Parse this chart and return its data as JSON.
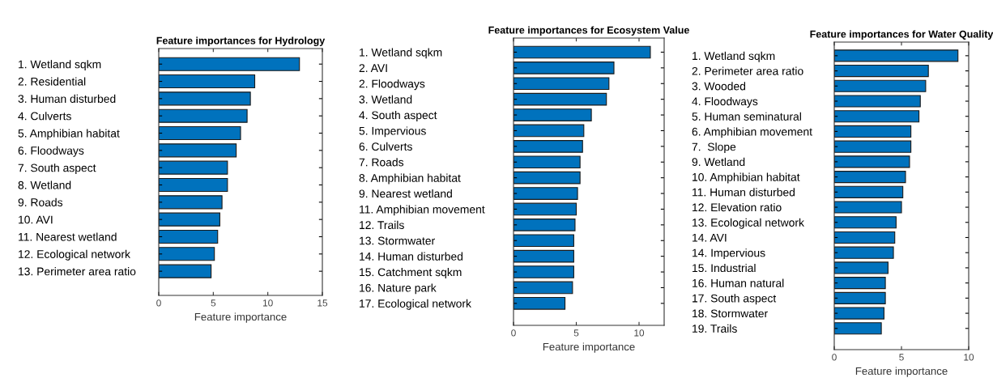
{
  "chart_data": [
    {
      "type": "bar",
      "orientation": "horizontal",
      "title": "Feature importances for Hydrology",
      "xlabel": "Feature importance",
      "categories": [
        "1. Wetland sqkm",
        "2. Residential",
        "3. Human disturbed",
        "4. Culverts",
        "5. Amphibian habitat",
        "6. Floodways",
        "7. South aspect",
        "8. Wetland",
        "9. Roads",
        "10. AVI",
        "11. Nearest wetland",
        "12. Ecological network",
        "13. Perimeter area ratio"
      ],
      "color": "#0072bd",
      "values": [
        12.9,
        8.8,
        8.4,
        8.1,
        7.5,
        7.1,
        6.3,
        6.3,
        5.8,
        5.6,
        5.4,
        5.1,
        4.8
      ],
      "xlim": [
        0,
        15
      ],
      "xticks": [
        0,
        5,
        10,
        15
      ],
      "grid": false
    },
    {
      "type": "bar",
      "orientation": "horizontal",
      "title": "Feature importances for Ecosystem Value",
      "xlabel": "Feature importance",
      "categories": [
        "1. Wetland sqkm",
        "2. AVI",
        "2. Floodways",
        "3. Wetland",
        "4. South aspect",
        "5. Impervious",
        "6. Culverts",
        "7. Roads",
        "8. Amphibian habitat",
        "9. Nearest wetland",
        "11. Amphibian movement",
        "12. Trails",
        "13. Stormwater",
        "14. Human disturbed",
        "15. Catchment sqkm",
        "16. Nature park",
        "17. Ecological network"
      ],
      "color": "#0072bd",
      "values": [
        10.9,
        8.0,
        7.6,
        7.4,
        6.2,
        5.6,
        5.5,
        5.3,
        5.3,
        5.1,
        5.0,
        4.9,
        4.8,
        4.8,
        4.8,
        4.7,
        4.1
      ],
      "xlim": [
        0,
        12
      ],
      "xticks": [
        0,
        5,
        10
      ],
      "grid": false
    },
    {
      "type": "bar",
      "orientation": "horizontal",
      "title": "Feature importances for Water Quality",
      "xlabel": "Feature importance",
      "categories": [
        "1. Wetland sqkm",
        "2. Perimeter area ratio",
        "3. Wooded",
        "4. Floodways",
        "5. Human seminatural",
        "6. Amphibian movement",
        "7.  Slope",
        "9. Wetland",
        "10. Amphibian habitat",
        "11. Human disturbed",
        "12. Elevation ratio",
        "13. Ecological network",
        "14. AVI",
        "14. Impervious",
        "15. Industrial",
        "16. Human natural",
        "17. South aspect",
        "18. Stormwater",
        "19. Trails"
      ],
      "color": "#0072bd",
      "values": [
        9.2,
        7.0,
        6.8,
        6.4,
        6.3,
        5.7,
        5.7,
        5.6,
        5.3,
        5.1,
        5.0,
        4.6,
        4.5,
        4.4,
        4.0,
        3.8,
        3.8,
        3.7,
        3.5
      ],
      "xlim": [
        0,
        10
      ],
      "xticks": [
        0,
        5,
        10
      ],
      "grid": false
    }
  ]
}
